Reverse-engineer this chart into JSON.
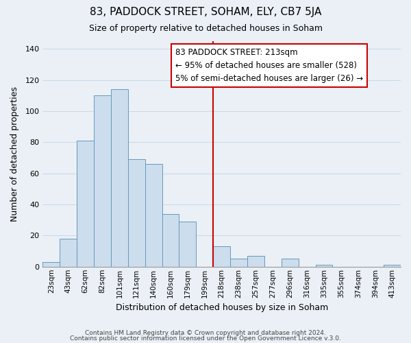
{
  "title": "83, PADDOCK STREET, SOHAM, ELY, CB7 5JA",
  "subtitle": "Size of property relative to detached houses in Soham",
  "xlabel": "Distribution of detached houses by size in Soham",
  "ylabel": "Number of detached properties",
  "bar_labels": [
    "23sqm",
    "43sqm",
    "62sqm",
    "82sqm",
    "101sqm",
    "121sqm",
    "140sqm",
    "160sqm",
    "179sqm",
    "199sqm",
    "218sqm",
    "238sqm",
    "257sqm",
    "277sqm",
    "296sqm",
    "316sqm",
    "335sqm",
    "355sqm",
    "374sqm",
    "394sqm",
    "413sqm"
  ],
  "bar_values": [
    3,
    18,
    81,
    110,
    114,
    69,
    66,
    34,
    29,
    0,
    13,
    5,
    7,
    0,
    5,
    0,
    1,
    0,
    0,
    0,
    1
  ],
  "bar_color": "#ccdded",
  "bar_edge_color": "#6699bb",
  "vline_color": "#cc0000",
  "annotation_title": "83 PADDOCK STREET: 213sqm",
  "annotation_line1": "← 95% of detached houses are smaller (528)",
  "annotation_line2": "5% of semi-detached houses are larger (26) →",
  "annotation_box_color": "#ffffff",
  "annotation_border_color": "#cc0000",
  "ylim": [
    0,
    145
  ],
  "yticks": [
    0,
    20,
    40,
    60,
    80,
    100,
    120,
    140
  ],
  "footer1": "Contains HM Land Registry data © Crown copyright and database right 2024.",
  "footer2": "Contains public sector information licensed under the Open Government Licence v.3.0.",
  "grid_color": "#c8d8e8",
  "background_color": "#eaf0f6",
  "title_fontsize": 11,
  "subtitle_fontsize": 9
}
